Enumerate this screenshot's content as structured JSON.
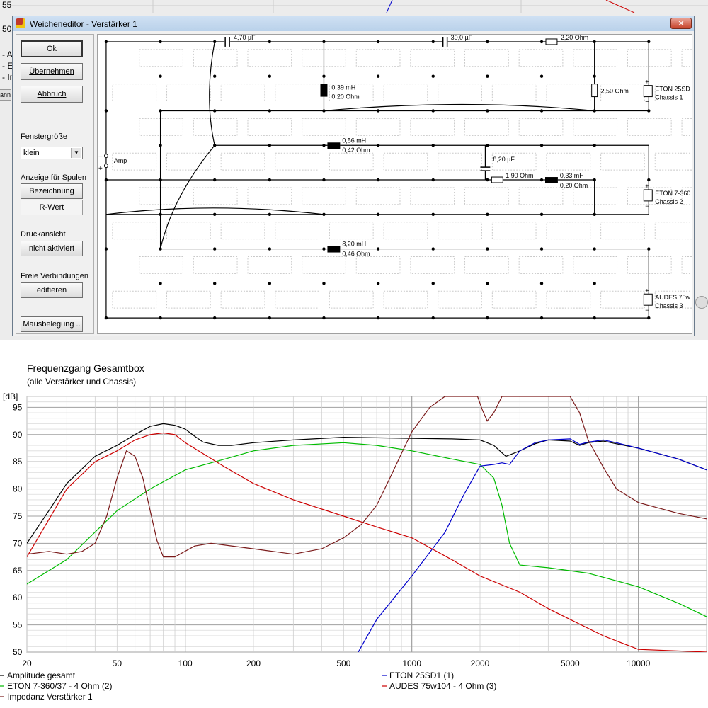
{
  "background_app": {
    "top_tick_label": "55",
    "mid_tick_label": "50",
    "legend_fragments": [
      "- A",
      "- E",
      "- Im"
    ],
    "strip_text": "annu"
  },
  "dialog": {
    "title": "Weicheneditor - Verstärker 1",
    "close_glyph": "✕",
    "buttons": {
      "ok": "Ok",
      "apply": "Übernehmen",
      "cancel": "Abbruch"
    },
    "window_size": {
      "label": "Fenstergröße",
      "value": "klein"
    },
    "coil_display": {
      "label": "Anzeige für Spulen",
      "option_name": "Bezeichnung",
      "option_resistance": "R-Wert"
    },
    "print_view": {
      "label": "Druckansicht",
      "value": "nicht aktiviert"
    },
    "free_connections": {
      "label": "Freie Verbindungen",
      "value": "editieren"
    },
    "mouse_button": "Mausbelegung .."
  },
  "circuit": {
    "amp_label": "Amp",
    "amp_minus": "−",
    "amp_plus": "+",
    "components": {
      "c1": "4,70 µF",
      "c2": "30,0 µF",
      "r1": "2,20 Ohm",
      "l1_value": "0,39 mH",
      "l1_r": "0,20 Ohm",
      "r2": "2,50 Ohm",
      "l2_value": "0,56 mH",
      "l2_r": "0,42 Ohm",
      "c3": "8,20 µF",
      "r3": "1,90 Ohm",
      "l3_value": "0,33 mH",
      "l3_r": "0,20 Ohm",
      "l4_value": "8,20 mH",
      "l4_r": "0,46 Ohm"
    },
    "chassis": [
      {
        "name": "ETON 25SD",
        "slot": "Chassis 1"
      },
      {
        "name": "ETON 7-360",
        "slot": "Chassis 2"
      },
      {
        "name": "AUDES 75w",
        "slot": "Chassis 3"
      }
    ]
  },
  "chart_data": {
    "type": "line",
    "title": "Frequenzgang Gesamtbox",
    "subtitle": "(alle Verstärker und Chassis)",
    "ylabel": "[dB]",
    "x_scale": "log",
    "xlim": [
      20,
      20000
    ],
    "ylim": [
      50,
      97
    ],
    "x_ticks": [
      20,
      50,
      100,
      200,
      500,
      1000,
      2000,
      5000,
      10000
    ],
    "y_ticks": [
      50,
      55,
      60,
      65,
      70,
      75,
      80,
      85,
      90,
      95
    ],
    "grid": true,
    "legend_position": "bottom",
    "series": [
      {
        "name": "Amplitude gesamt",
        "color": "#000000",
        "points": [
          [
            20,
            70
          ],
          [
            25,
            76
          ],
          [
            30,
            81
          ],
          [
            40,
            86
          ],
          [
            50,
            88
          ],
          [
            60,
            90
          ],
          [
            70,
            91.5
          ],
          [
            80,
            92
          ],
          [
            90,
            91.7
          ],
          [
            100,
            91
          ],
          [
            110,
            89.7
          ],
          [
            120,
            88.6
          ],
          [
            140,
            88
          ],
          [
            160,
            88
          ],
          [
            200,
            88.5
          ],
          [
            300,
            89
          ],
          [
            500,
            89.5
          ],
          [
            700,
            89.4
          ],
          [
            1000,
            89.3
          ],
          [
            1500,
            89.2
          ],
          [
            2000,
            89
          ],
          [
            2300,
            88
          ],
          [
            2600,
            86
          ],
          [
            2800,
            86.5
          ],
          [
            3000,
            87
          ],
          [
            3500,
            88.3
          ],
          [
            4000,
            89
          ],
          [
            5000,
            88.8
          ],
          [
            5500,
            88
          ],
          [
            6000,
            88.5
          ],
          [
            7000,
            88.8
          ],
          [
            8000,
            88.3
          ],
          [
            10000,
            87.5
          ],
          [
            15000,
            85.5
          ],
          [
            20000,
            83.5
          ]
        ]
      },
      {
        "name": "ETON 7-360/37 - 4 Ohm (2)",
        "color": "#00bb00",
        "points": [
          [
            20,
            62.5
          ],
          [
            30,
            67
          ],
          [
            50,
            76
          ],
          [
            70,
            80
          ],
          [
            100,
            83.5
          ],
          [
            150,
            85.5
          ],
          [
            200,
            87
          ],
          [
            300,
            88
          ],
          [
            500,
            88.5
          ],
          [
            700,
            88
          ],
          [
            1000,
            87
          ],
          [
            1500,
            85.5
          ],
          [
            2000,
            84.5
          ],
          [
            2300,
            82
          ],
          [
            2500,
            77
          ],
          [
            2700,
            70
          ],
          [
            3000,
            66
          ],
          [
            4000,
            65.5
          ],
          [
            6000,
            64.5
          ],
          [
            10000,
            62
          ],
          [
            15000,
            59
          ],
          [
            20000,
            56.5
          ]
        ]
      },
      {
        "name": "Impedanz Verstärker 1",
        "color": "#7a1a1a",
        "points": [
          [
            20,
            68
          ],
          [
            25,
            68.5
          ],
          [
            30,
            68
          ],
          [
            35,
            68.5
          ],
          [
            40,
            70
          ],
          [
            45,
            75
          ],
          [
            50,
            82
          ],
          [
            55,
            87
          ],
          [
            60,
            86
          ],
          [
            65,
            82
          ],
          [
            70,
            76
          ],
          [
            75,
            70.5
          ],
          [
            80,
            67.5
          ],
          [
            90,
            67.5
          ],
          [
            110,
            69.5
          ],
          [
            130,
            70
          ],
          [
            200,
            69
          ],
          [
            300,
            68
          ],
          [
            400,
            69
          ],
          [
            500,
            71
          ],
          [
            600,
            73.5
          ],
          [
            700,
            77
          ],
          [
            800,
            82
          ],
          [
            900,
            86.5
          ],
          [
            1000,
            90.5
          ],
          [
            1200,
            95
          ],
          [
            1400,
            97
          ],
          [
            1800,
            97
          ],
          [
            1950,
            97
          ],
          [
            2050,
            94.5
          ],
          [
            2150,
            92.5
          ],
          [
            2300,
            94
          ],
          [
            2500,
            97
          ],
          [
            5000,
            97
          ],
          [
            5500,
            94
          ],
          [
            6000,
            89
          ],
          [
            7000,
            84
          ],
          [
            8000,
            80
          ],
          [
            10000,
            77.5
          ],
          [
            15000,
            75.5
          ],
          [
            20000,
            74.5
          ]
        ]
      },
      {
        "name": "ETON 25SD1 (1)",
        "color": "#0000cc",
        "points": [
          [
            580,
            50
          ],
          [
            700,
            56
          ],
          [
            1000,
            64
          ],
          [
            1400,
            72
          ],
          [
            1700,
            79
          ],
          [
            2000,
            84.2
          ],
          [
            2300,
            84.5
          ],
          [
            2500,
            84.8
          ],
          [
            2700,
            84.5
          ],
          [
            3000,
            87
          ],
          [
            3500,
            88.5
          ],
          [
            4000,
            89
          ],
          [
            5000,
            89.2
          ],
          [
            5500,
            88.2
          ],
          [
            6000,
            88.6
          ],
          [
            7000,
            89
          ],
          [
            8000,
            88.5
          ],
          [
            10000,
            87.5
          ],
          [
            15000,
            85.5
          ],
          [
            20000,
            83.5
          ]
        ]
      },
      {
        "name": "AUDES 75w104 - 4 Ohm (3)",
        "color": "#cc0000",
        "points": [
          [
            20,
            67.5
          ],
          [
            30,
            80
          ],
          [
            40,
            85
          ],
          [
            50,
            87
          ],
          [
            60,
            89
          ],
          [
            70,
            90
          ],
          [
            80,
            90.3
          ],
          [
            90,
            90
          ],
          [
            100,
            88.5
          ],
          [
            150,
            84
          ],
          [
            200,
            81
          ],
          [
            300,
            78
          ],
          [
            500,
            75
          ],
          [
            700,
            73
          ],
          [
            1000,
            71
          ],
          [
            1500,
            67
          ],
          [
            2000,
            64
          ],
          [
            3000,
            61
          ],
          [
            4000,
            58
          ],
          [
            5000,
            56
          ],
          [
            7000,
            53
          ],
          [
            10000,
            50.5
          ],
          [
            20000,
            50
          ]
        ]
      }
    ]
  }
}
